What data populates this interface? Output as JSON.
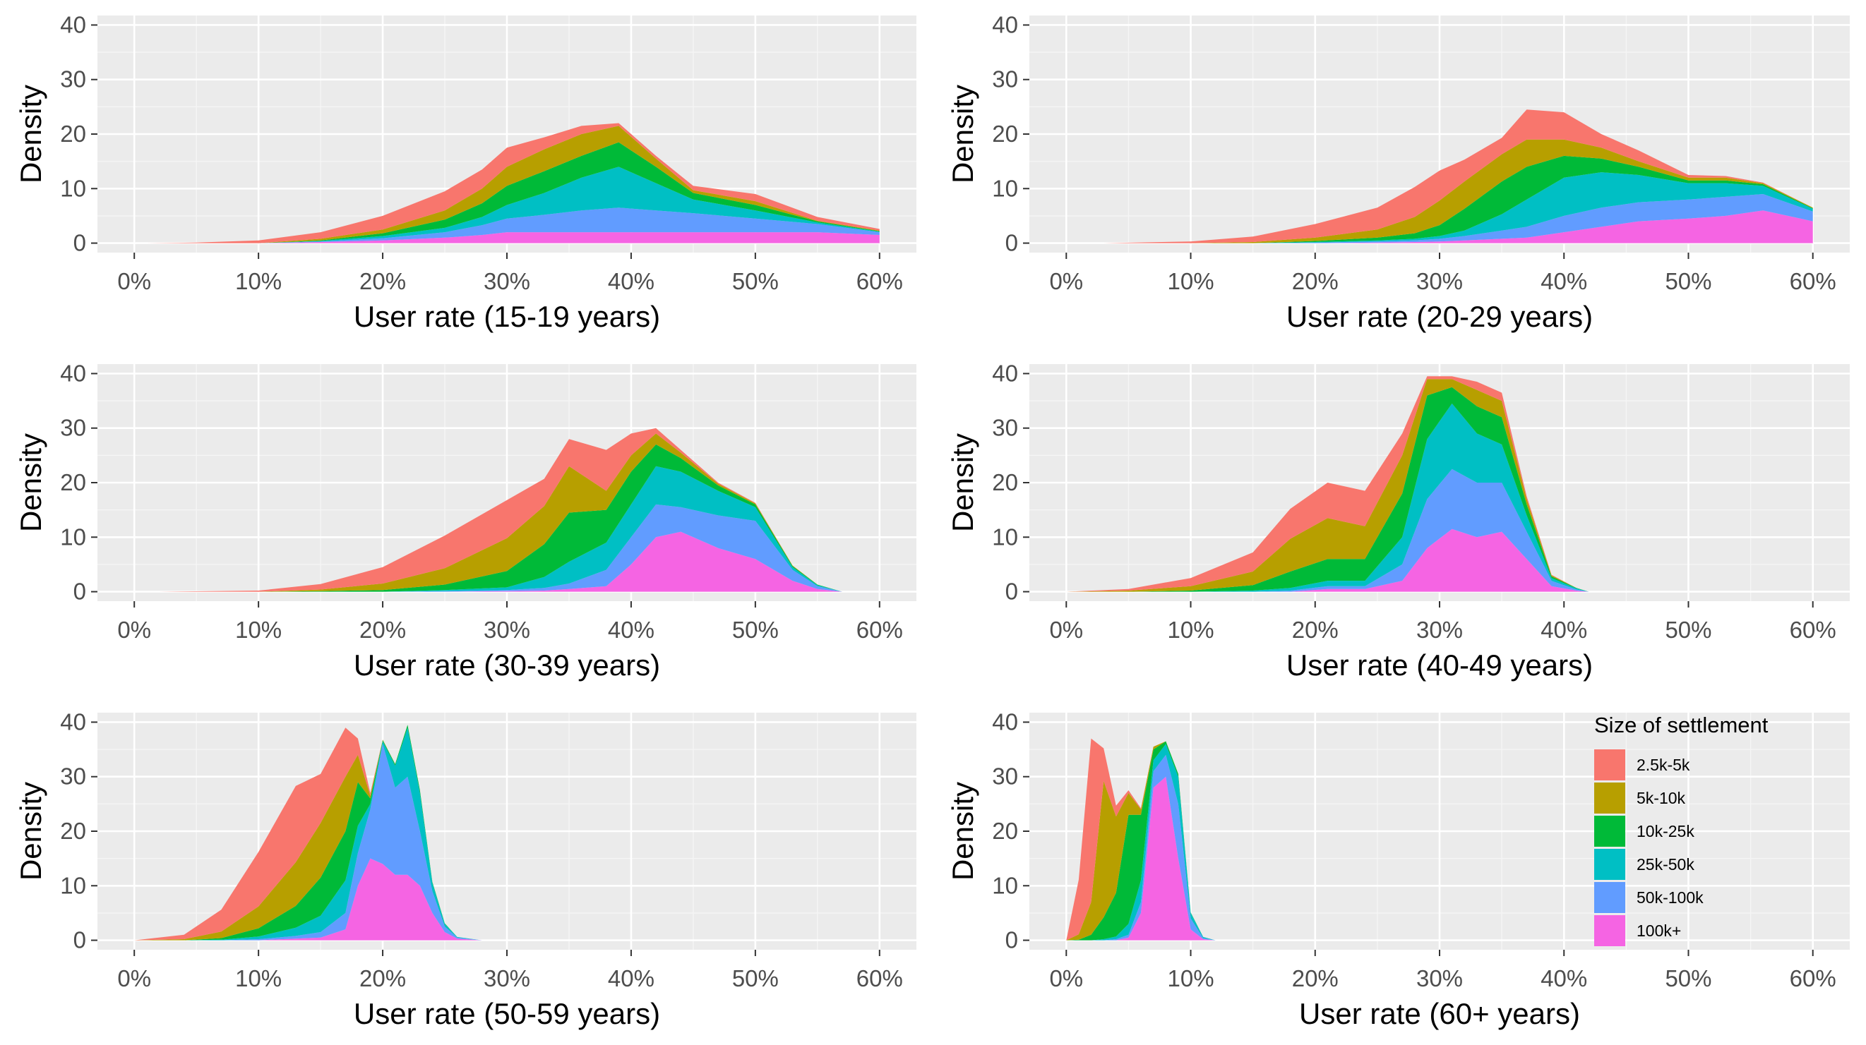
{
  "legend": {
    "title": "Size of settlement",
    "entries": [
      {
        "label": "2.5k-5k",
        "color": "#F8766D"
      },
      {
        "label": "5k-10k",
        "color": "#B79F00"
      },
      {
        "label": "10k-25k",
        "color": "#00BA38"
      },
      {
        "label": "25k-50k",
        "color": "#00BFC4"
      },
      {
        "label": "50k-100k",
        "color": "#619CFF"
      },
      {
        "label": "100k+",
        "color": "#F564E3"
      }
    ]
  },
  "chart_data": [
    {
      "type": "area",
      "subtype": "stacked-density",
      "xlabel": "User rate (15-19 years)",
      "ylabel": "Density",
      "xlim": [
        0,
        0.6
      ],
      "ylim": [
        0,
        40
      ],
      "x_ticks": [
        "0%",
        "10%",
        "20%",
        "30%",
        "40%",
        "50%",
        "60%"
      ],
      "y_ticks": [
        "0",
        "10",
        "20",
        "30",
        "40"
      ],
      "x": [
        0.01,
        0.05,
        0.1,
        0.15,
        0.2,
        0.25,
        0.28,
        0.3,
        0.33,
        0.36,
        0.39,
        0.42,
        0.45,
        0.5,
        0.55,
        0.6
      ],
      "series": [
        {
          "name": "100k+",
          "values": [
            0,
            0,
            0,
            0.2,
            0.5,
            1.0,
            1.5,
            2.0,
            2.0,
            2.0,
            2.0,
            2.0,
            2.0,
            2.0,
            2.0,
            1.5
          ]
        },
        {
          "name": "50k-100k",
          "values": [
            0,
            0,
            0,
            0.1,
            0.4,
            1.0,
            1.8,
            2.5,
            3.2,
            4.0,
            4.5,
            4.0,
            3.5,
            2.5,
            1.5,
            0.5
          ]
        },
        {
          "name": "25k-50k",
          "values": [
            0,
            0,
            0,
            0.1,
            0.4,
            0.8,
            1.5,
            2.5,
            4.0,
            6.0,
            7.5,
            5.0,
            2.5,
            1.5,
            0.3,
            0.1
          ]
        },
        {
          "name": "10k-25k",
          "values": [
            0,
            0,
            0,
            0.1,
            0.5,
            1.5,
            2.5,
            3.5,
            4.0,
            4.0,
            4.5,
            3.0,
            1.2,
            1.0,
            0.2,
            0.1
          ]
        },
        {
          "name": "5k-10k",
          "values": [
            0,
            0,
            0,
            0.3,
            0.7,
            1.7,
            2.7,
            3.5,
            4.0,
            4.0,
            3.0,
            1.5,
            0.5,
            0.7,
            0.1,
            0.1
          ]
        },
        {
          "name": "2.5k-5k",
          "values": [
            0,
            0.1,
            0.5,
            1.2,
            2.5,
            3.5,
            3.5,
            3.5,
            2.2,
            1.5,
            0.5,
            0.5,
            0.8,
            1.3,
            0.7,
            0.3
          ]
        }
      ]
    },
    {
      "type": "area",
      "subtype": "stacked-density",
      "xlabel": "User rate (20-29 years)",
      "ylabel": "Density",
      "xlim": [
        0,
        0.6
      ],
      "ylim": [
        0,
        40
      ],
      "x_ticks": [
        "0%",
        "10%",
        "20%",
        "30%",
        "40%",
        "50%",
        "60%"
      ],
      "y_ticks": [
        "0",
        "10",
        "20",
        "30",
        "40"
      ],
      "x": [
        0.03,
        0.1,
        0.15,
        0.2,
        0.25,
        0.28,
        0.3,
        0.32,
        0.35,
        0.37,
        0.4,
        0.43,
        0.46,
        0.5,
        0.53,
        0.56,
        0.6
      ],
      "series": [
        {
          "name": "100k+",
          "values": [
            0,
            0,
            0,
            0,
            0.1,
            0.2,
            0.3,
            0.5,
            0.8,
            1.0,
            2.0,
            3.0,
            4.0,
            4.5,
            5.0,
            6.0,
            4.0
          ]
        },
        {
          "name": "50k-100k",
          "values": [
            0,
            0,
            0,
            0.1,
            0.2,
            0.3,
            0.5,
            0.8,
            1.5,
            2.0,
            3.0,
            3.5,
            3.5,
            3.5,
            3.5,
            3.0,
            1.8
          ]
        },
        {
          "name": "25k-50k",
          "values": [
            0,
            0,
            0,
            0.1,
            0.2,
            0.3,
            0.5,
            1.0,
            3.0,
            5.0,
            7.0,
            6.5,
            5.0,
            3.0,
            2.5,
            1.5,
            0.5
          ]
        },
        {
          "name": "10k-25k",
          "values": [
            0,
            0,
            0,
            0.2,
            0.5,
            1.0,
            2.0,
            4.0,
            6.0,
            6.0,
            4.0,
            2.5,
            1.5,
            0.5,
            0.5,
            0.3,
            0.1
          ]
        },
        {
          "name": "5k-10k",
          "values": [
            0,
            0,
            0.2,
            0.6,
            1.5,
            3.0,
            4.5,
            5.0,
            5.0,
            5.0,
            3.0,
            2.0,
            1.0,
            0.5,
            0.5,
            0.2,
            0.1
          ]
        },
        {
          "name": "2.5k-5k",
          "values": [
            0,
            0.3,
            1.0,
            2.5,
            4.0,
            5.5,
            5.5,
            4.0,
            3.0,
            5.5,
            5.0,
            2.5,
            2.0,
            0.5,
            0.3,
            0.1,
            0
          ]
        }
      ]
    },
    {
      "type": "area",
      "subtype": "stacked-density",
      "xlabel": "User rate (30-39 years)",
      "ylabel": "Density",
      "xlim": [
        0,
        0.6
      ],
      "ylim": [
        0,
        40
      ],
      "x_ticks": [
        "0%",
        "10%",
        "20%",
        "30%",
        "40%",
        "50%",
        "60%"
      ],
      "y_ticks": [
        "0",
        "10",
        "20",
        "30",
        "40"
      ],
      "x": [
        0.02,
        0.1,
        0.15,
        0.2,
        0.25,
        0.3,
        0.33,
        0.35,
        0.38,
        0.4,
        0.42,
        0.44,
        0.47,
        0.5,
        0.53,
        0.55,
        0.57
      ],
      "series": [
        {
          "name": "100k+",
          "values": [
            0,
            0,
            0,
            0,
            0,
            0.1,
            0.2,
            0.5,
            1.0,
            5.0,
            10.0,
            11.0,
            8.0,
            6.0,
            2.0,
            0.5,
            0
          ]
        },
        {
          "name": "50k-100k",
          "values": [
            0,
            0,
            0,
            0,
            0.1,
            0.2,
            0.5,
            1.0,
            3.0,
            5.0,
            6.0,
            4.5,
            6.0,
            7.0,
            2.0,
            0.5,
            0
          ]
        },
        {
          "name": "25k-50k",
          "values": [
            0,
            0,
            0,
            0,
            0.2,
            0.5,
            2.0,
            4.0,
            5.0,
            6.0,
            7.0,
            6.5,
            4.5,
            2.5,
            0.5,
            0.2,
            0
          ]
        },
        {
          "name": "10k-25k",
          "values": [
            0,
            0,
            0.1,
            0.3,
            1.0,
            3.0,
            6.0,
            9.0,
            6.0,
            6.0,
            4.0,
            2.5,
            1.0,
            0.5,
            0.2,
            0.1,
            0
          ]
        },
        {
          "name": "5k-10k",
          "values": [
            0,
            0,
            0.3,
            1.2,
            3.0,
            6.0,
            7.0,
            8.5,
            3.5,
            3.0,
            2.0,
            1.0,
            0.3,
            0.2,
            0.1,
            0,
            0
          ]
        },
        {
          "name": "2.5k-5k",
          "values": [
            0,
            0.2,
            1.0,
            3.0,
            6.0,
            7.0,
            5.0,
            5.0,
            7.5,
            4.0,
            1.0,
            0.5,
            0.2,
            0.1,
            0,
            0,
            0
          ]
        }
      ]
    },
    {
      "type": "area",
      "subtype": "stacked-density",
      "xlabel": "User rate (40-49 years)",
      "ylabel": "Density",
      "xlim": [
        0,
        0.6
      ],
      "ylim": [
        0,
        40
      ],
      "x_ticks": [
        "0%",
        "10%",
        "20%",
        "30%",
        "40%",
        "50%",
        "60%"
      ],
      "y_ticks": [
        "0",
        "10",
        "20",
        "30",
        "40"
      ],
      "x": [
        0.0,
        0.05,
        0.1,
        0.15,
        0.18,
        0.21,
        0.24,
        0.27,
        0.29,
        0.31,
        0.33,
        0.35,
        0.37,
        0.39,
        0.41,
        0.42
      ],
      "series": [
        {
          "name": "100k+",
          "values": [
            0,
            0,
            0,
            0,
            0,
            0.5,
            0.5,
            2.0,
            8.0,
            11.5,
            10.0,
            11.0,
            6.0,
            1.0,
            0.2,
            0
          ]
        },
        {
          "name": "50k-100k",
          "values": [
            0,
            0,
            0,
            0,
            0.2,
            0.5,
            0.5,
            3.0,
            9.0,
            11.0,
            10.0,
            9.0,
            5.0,
            1.0,
            0.2,
            0
          ]
        },
        {
          "name": "25k-50k",
          "values": [
            0,
            0,
            0,
            0.2,
            0.5,
            1.0,
            1.0,
            5.0,
            11.0,
            12.0,
            9.0,
            7.0,
            3.0,
            0.5,
            0.2,
            0
          ]
        },
        {
          "name": "10k-25k",
          "values": [
            0,
            0,
            0.2,
            1.0,
            3.0,
            4.0,
            4.0,
            8.0,
            8.0,
            3.0,
            5.0,
            5.0,
            2.0,
            0.3,
            0.1,
            0
          ]
        },
        {
          "name": "5k-10k",
          "values": [
            0,
            0.2,
            0.8,
            2.5,
            6.0,
            7.5,
            6.0,
            7.0,
            3.0,
            1.5,
            3.0,
            3.0,
            1.0,
            0.2,
            0,
            0
          ]
        },
        {
          "name": "2.5k-5k",
          "values": [
            0,
            0.3,
            1.5,
            3.5,
            5.5,
            6.5,
            6.5,
            4.0,
            1.0,
            0.5,
            1.5,
            1.5,
            0.5,
            0.1,
            0,
            0
          ]
        }
      ]
    },
    {
      "type": "area",
      "subtype": "stacked-density",
      "xlabel": "User rate (50-59 years)",
      "ylabel": "Density",
      "xlim": [
        0,
        0.6
      ],
      "ylim": [
        0,
        40
      ],
      "x_ticks": [
        "0%",
        "10%",
        "20%",
        "30%",
        "40%",
        "50%",
        "60%"
      ],
      "y_ticks": [
        "0",
        "10",
        "20",
        "30",
        "40"
      ],
      "x": [
        0.0,
        0.04,
        0.07,
        0.1,
        0.13,
        0.15,
        0.17,
        0.18,
        0.19,
        0.2,
        0.21,
        0.22,
        0.23,
        0.24,
        0.25,
        0.26,
        0.28
      ],
      "series": [
        {
          "name": "100k+",
          "values": [
            0,
            0,
            0,
            0,
            0.3,
            0.5,
            2.0,
            10.0,
            15.0,
            14.0,
            12.0,
            12.0,
            10.0,
            5.0,
            1.5,
            0.3,
            0
          ]
        },
        {
          "name": "50k-100k",
          "values": [
            0,
            0,
            0,
            0.2,
            0.5,
            1.0,
            3.0,
            6.0,
            9.0,
            22.0,
            16.0,
            18.0,
            10.0,
            4.0,
            1.0,
            0.2,
            0
          ]
        },
        {
          "name": "25k-50k",
          "values": [
            0,
            0,
            0.1,
            0.5,
            1.5,
            3.0,
            6.0,
            5.0,
            1.0,
            0.5,
            4.0,
            9.0,
            7.0,
            1.5,
            0.5,
            0.1,
            0
          ]
        },
        {
          "name": "10k-25k",
          "values": [
            0,
            0,
            0.3,
            1.5,
            4.0,
            7.0,
            9.0,
            8.0,
            1.0,
            0.2,
            0.3,
            0.5,
            0.5,
            0.2,
            0.1,
            0,
            0
          ]
        },
        {
          "name": "5k-10k",
          "values": [
            0,
            0.2,
            1.2,
            4.0,
            8.0,
            10.0,
            10.0,
            5.0,
            0.5,
            0.1,
            0,
            0,
            0,
            0,
            0,
            0,
            0
          ]
        },
        {
          "name": "2.5k-5k",
          "values": [
            0,
            0.8,
            4.0,
            10.0,
            14.0,
            9.0,
            9.0,
            3.0,
            0.5,
            0,
            0,
            0,
            0,
            0,
            0,
            0,
            0
          ]
        }
      ]
    },
    {
      "type": "area",
      "subtype": "stacked-density",
      "xlabel": "User rate (60+ years)",
      "ylabel": "Density",
      "xlim": [
        0,
        0.6
      ],
      "ylim": [
        0,
        40
      ],
      "x_ticks": [
        "0%",
        "10%",
        "20%",
        "30%",
        "40%",
        "50%",
        "60%"
      ],
      "y_ticks": [
        "0",
        "10",
        "20",
        "30",
        "40"
      ],
      "x": [
        0.0,
        0.01,
        0.02,
        0.03,
        0.04,
        0.05,
        0.06,
        0.07,
        0.08,
        0.09,
        0.1,
        0.11,
        0.12
      ],
      "series": [
        {
          "name": "100k+",
          "values": [
            0,
            0,
            0,
            0,
            0,
            0.5,
            5.0,
            28.0,
            30.0,
            15.0,
            2.0,
            0.2,
            0
          ]
        },
        {
          "name": "50k-100k",
          "values": [
            0,
            0,
            0,
            0,
            0.2,
            0.5,
            2.0,
            3.0,
            4.0,
            10.0,
            2.0,
            0.2,
            0
          ]
        },
        {
          "name": "25k-50k",
          "values": [
            0,
            0,
            0,
            0.2,
            0.5,
            2.0,
            4.0,
            2.0,
            2.0,
            5.0,
            1.0,
            0.2,
            0
          ]
        },
        {
          "name": "10k-25k",
          "values": [
            0,
            0.1,
            1.0,
            4.0,
            8.0,
            20.0,
            12.0,
            2.0,
            0.5,
            0.5,
            0.1,
            0,
            0
          ]
        },
        {
          "name": "5k-10k",
          "values": [
            0,
            1.0,
            6.0,
            25.0,
            14.0,
            4.0,
            1.0,
            0.5,
            0,
            0,
            0,
            0,
            0
          ]
        },
        {
          "name": "2.5k-5k",
          "values": [
            0,
            10.0,
            30.0,
            6.0,
            2.0,
            0.5,
            0.2,
            0,
            0,
            0,
            0,
            0,
            0
          ]
        }
      ]
    }
  ]
}
